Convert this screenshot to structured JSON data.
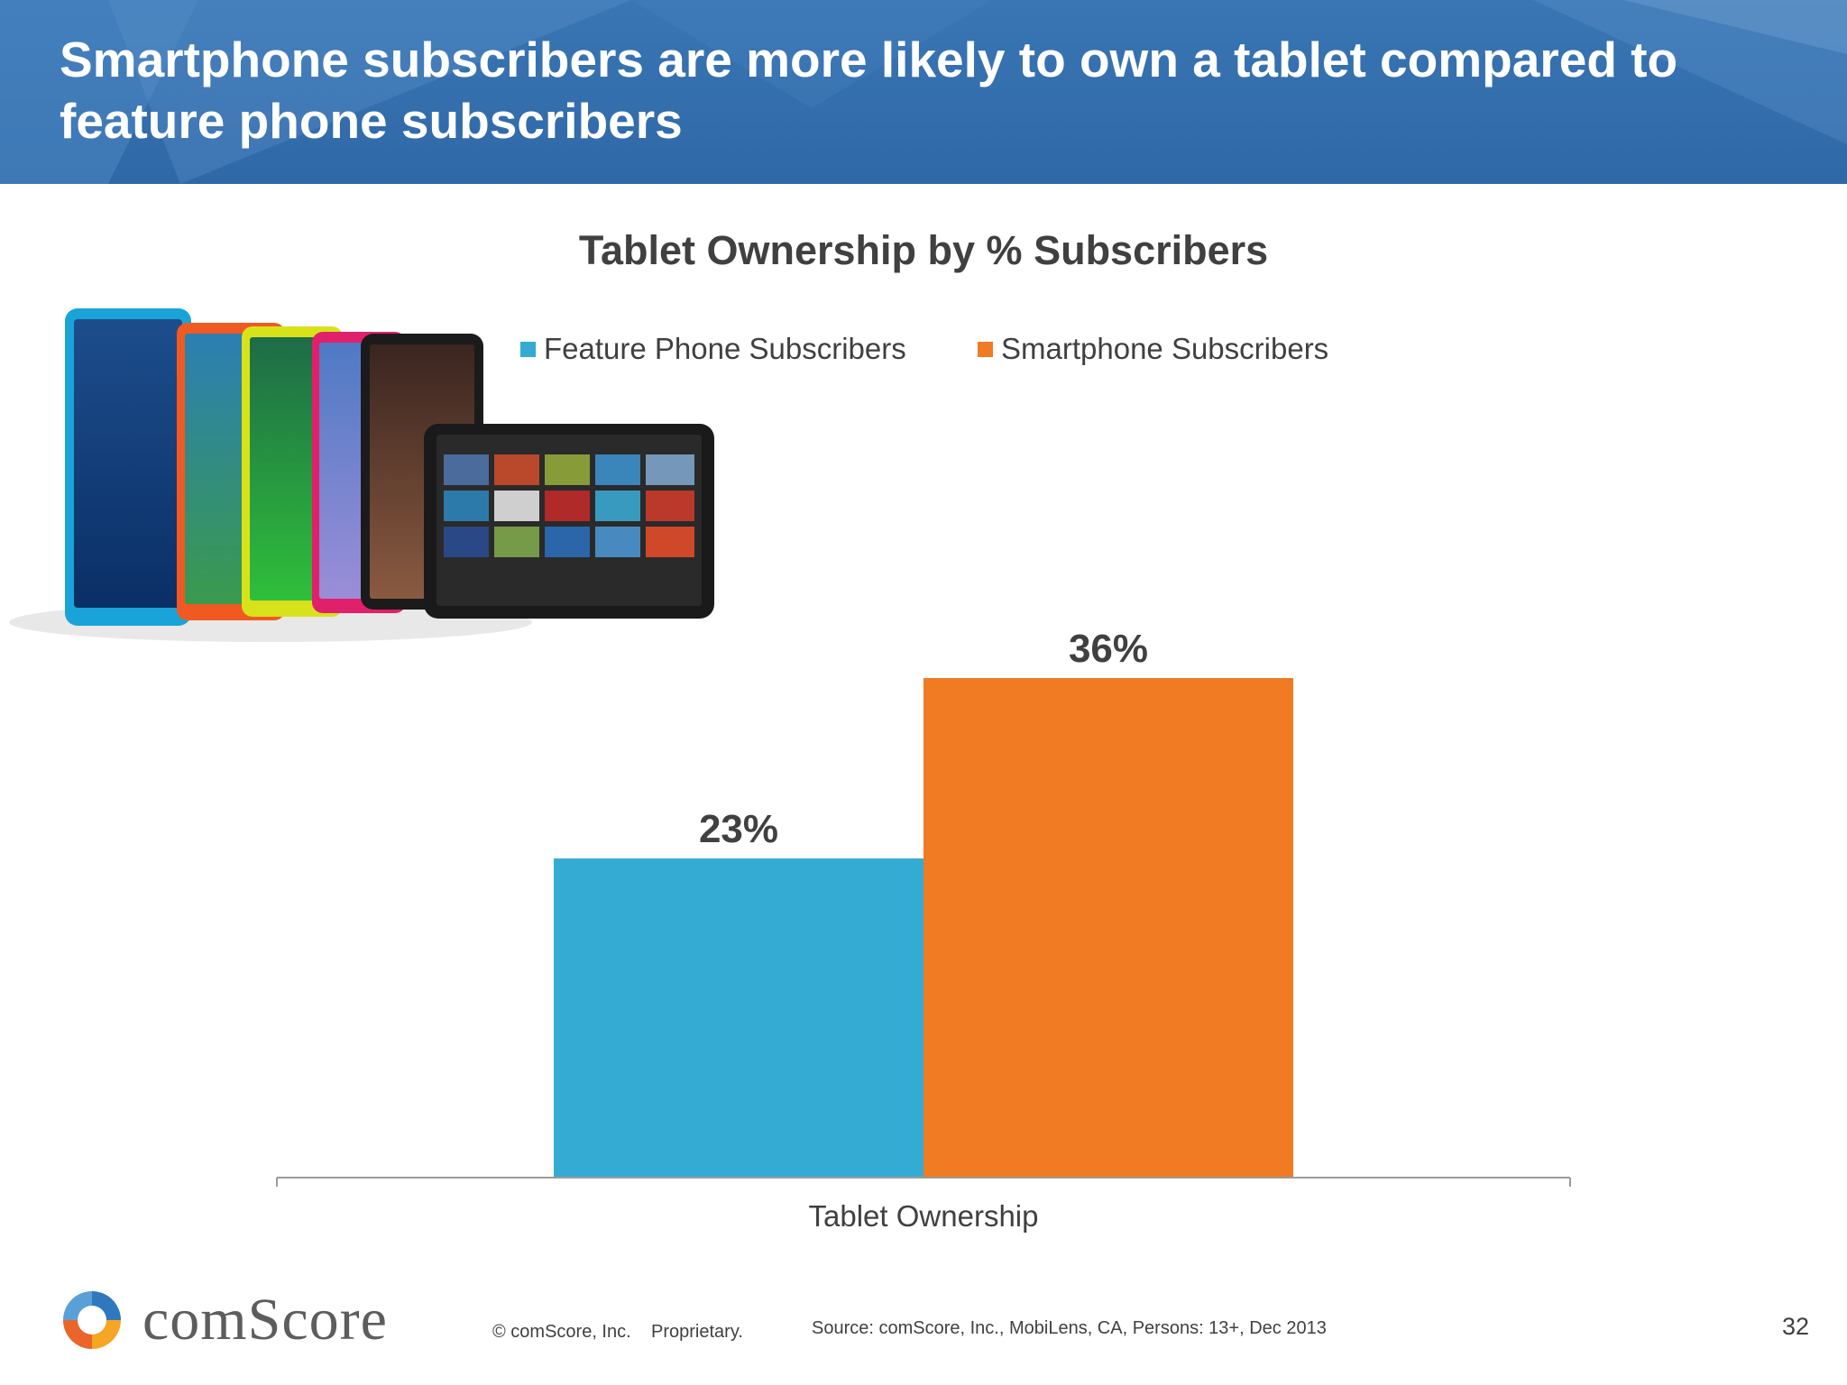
{
  "slide": {
    "title": "Smartphone subscribers are more likely to own a tablet compared to feature phone subscribers",
    "page_number": "32"
  },
  "chart_data": {
    "type": "bar",
    "title": "Tablet Ownership by % Subscribers",
    "categories": [
      "Tablet Ownership"
    ],
    "series": [
      {
        "name": "Feature Phone Subscribers",
        "values": [
          23
        ],
        "labels": [
          "23%"
        ],
        "color": "#33abd2"
      },
      {
        "name": "Smartphone Subscribers",
        "values": [
          36
        ],
        "labels": [
          "36%"
        ],
        "color": "#f07b22"
      }
    ],
    "ylim": [
      0,
      36
    ],
    "legend_position": "top",
    "grid": false
  },
  "footer": {
    "brand": "comScore",
    "copyright": "© comScore, Inc.",
    "proprietary": "Proprietary.",
    "source": "Source: comScore, Inc., MobiLens, CA, Persons: 13+, Dec 2013"
  },
  "images": {
    "tablets": "tablet-devices-photo"
  }
}
